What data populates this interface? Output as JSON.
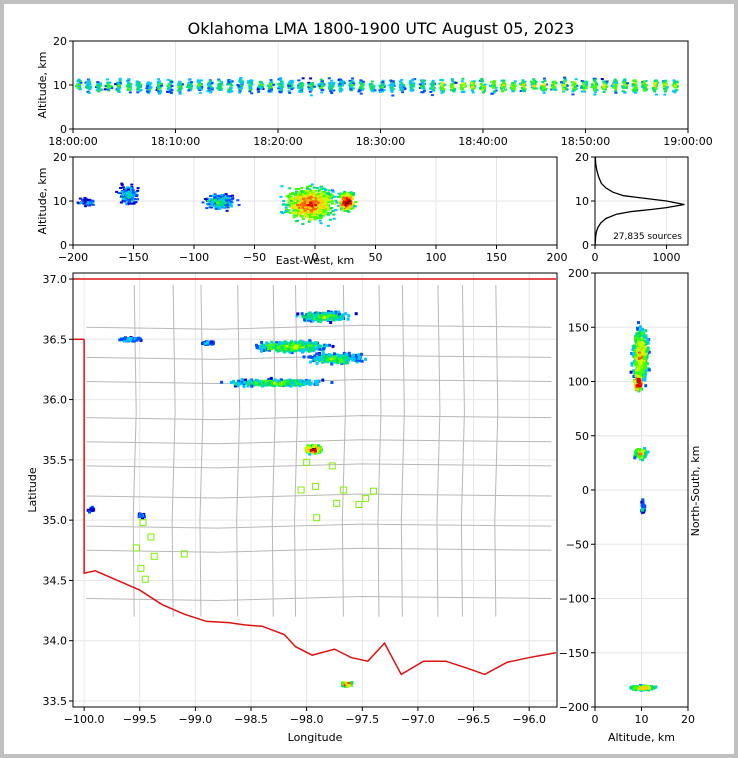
{
  "title": "Oklahoma LMA 1800-1900 UTC August 05, 2023",
  "source_count": "27,835 sources",
  "colors": {
    "border_red": "#e01010",
    "station_green": "#7cf000",
    "county_gray": "#b8b8b8"
  },
  "chart_data": [
    {
      "type": "heatmap",
      "panel": "altitude-time",
      "ylabel": "Altitude, km",
      "ylim": [
        0,
        20
      ],
      "xlim": [
        "18:00:00",
        "19:00:00"
      ],
      "x_ticks": [
        "18:00:00",
        "18:10:00",
        "18:20:00",
        "18:30:00",
        "18:40:00",
        "18:50:00",
        "19:00:00"
      ],
      "y_ticks": [
        "0",
        "10",
        "20"
      ]
    },
    {
      "type": "heatmap",
      "panel": "altitude-east-west",
      "xlabel": "East-West, km",
      "ylabel": "Altitude, km",
      "xlim": [
        -200,
        200
      ],
      "ylim": [
        0,
        20
      ],
      "x_ticks": [
        "−200",
        "−150",
        "−100",
        "−50",
        "0",
        "50",
        "100",
        "150",
        "200"
      ],
      "y_ticks": [
        "0",
        "10",
        "20"
      ]
    },
    {
      "type": "line",
      "panel": "altitude-histogram",
      "xlim": [
        0,
        1300
      ],
      "ylim": [
        0,
        20
      ],
      "x_ticks": [
        "0",
        "1000"
      ],
      "y_ticks": [
        "0",
        "10",
        "20"
      ],
      "x": [
        2,
        5,
        10,
        20,
        40,
        80,
        150,
        300,
        500,
        800,
        1000,
        1250,
        1000,
        700,
        400,
        250,
        150,
        90,
        50,
        25,
        10,
        4
      ],
      "y": [
        0,
        1,
        2,
        3,
        4,
        5,
        6,
        7,
        7.6,
        8.1,
        8.5,
        9.2,
        10,
        10.6,
        11.2,
        12,
        13,
        14,
        15.5,
        17,
        18.5,
        20
      ]
    },
    {
      "type": "heatmap",
      "panel": "plan-view",
      "xlabel": "Longitude",
      "ylabel": "Latitude",
      "xlim": [
        -100.1,
        -95.75
      ],
      "ylim": [
        33.45,
        37.05
      ],
      "x_ticks": [
        "−100.0",
        "−99.5",
        "−99.0",
        "−98.5",
        "−98.0",
        "−97.5",
        "−97.0",
        "−96.5",
        "−96.0"
      ],
      "y_ticks": [
        "33.5",
        "34.0",
        "34.5",
        "35.0",
        "35.5",
        "36.0",
        "36.5",
        "37.0"
      ],
      "stations": [
        {
          "lon": -99.47,
          "lat": 34.98
        },
        {
          "lon": -99.4,
          "lat": 34.86
        },
        {
          "lon": -99.53,
          "lat": 34.77
        },
        {
          "lon": -99.37,
          "lat": 34.7
        },
        {
          "lon": -99.1,
          "lat": 34.72
        },
        {
          "lon": -99.49,
          "lat": 34.6
        },
        {
          "lon": -99.45,
          "lat": 34.51
        },
        {
          "lon": -98.05,
          "lat": 35.25
        },
        {
          "lon": -98.0,
          "lat": 35.48
        },
        {
          "lon": -97.92,
          "lat": 35.28
        },
        {
          "lon": -97.77,
          "lat": 35.45
        },
        {
          "lon": -97.67,
          "lat": 35.25
        },
        {
          "lon": -97.73,
          "lat": 35.14
        },
        {
          "lon": -97.53,
          "lat": 35.13
        },
        {
          "lon": -97.47,
          "lat": 35.18
        },
        {
          "lon": -97.4,
          "lat": 35.24
        },
        {
          "lon": -97.91,
          "lat": 35.02
        }
      ]
    },
    {
      "type": "heatmap",
      "panel": "north-south-altitude",
      "xlabel": "Altitude, km",
      "ylabel": "North-South, km",
      "xlim": [
        0,
        20
      ],
      "ylim": [
        -200,
        200
      ],
      "x_ticks": [
        "0",
        "10",
        "20"
      ],
      "y_ticks": [
        "−200",
        "−150",
        "−100",
        "−50",
        "0",
        "50",
        "100",
        "150",
        "200"
      ]
    }
  ]
}
